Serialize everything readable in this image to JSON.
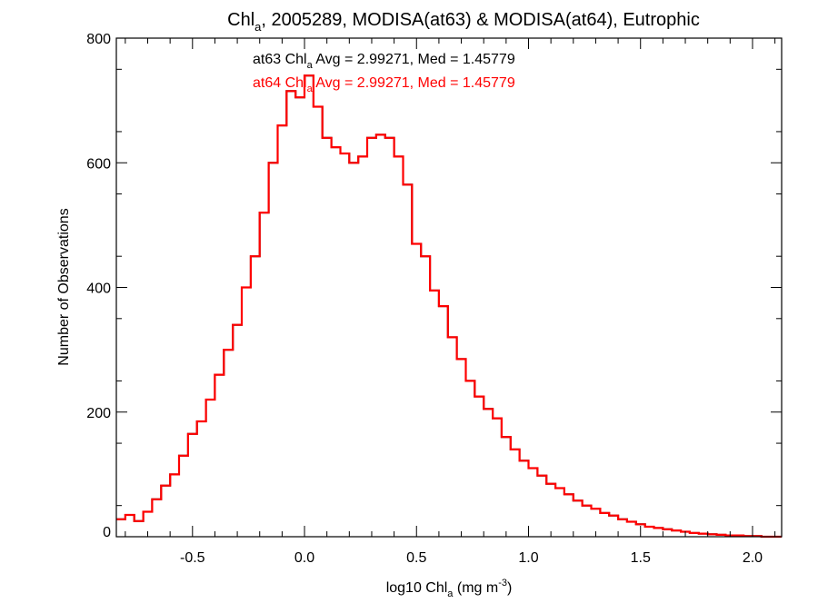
{
  "chart_data": {
    "type": "line",
    "title": {
      "prefix": "Chl",
      "sub": "a",
      "suffix": ", 2005289, MODISA(at63) & MODISA(at64), Eutrophic"
    },
    "xlabel": {
      "prefix": "log10 Chl",
      "sub": "a",
      "middle": " (mg m",
      "sup": "-3",
      "suffix": ")"
    },
    "ylabel": "Number of Observations",
    "xlim": [
      -0.84,
      2.13
    ],
    "ylim": [
      0,
      800
    ],
    "xticks": [
      -0.5,
      0.0,
      0.5,
      1.0,
      1.5,
      2.0
    ],
    "xtick_labels": [
      "-0.5",
      "0.0",
      "0.5",
      "1.0",
      "1.5",
      "2.0"
    ],
    "yticks": [
      0,
      200,
      400,
      600,
      800
    ],
    "ytick_labels": [
      "0",
      "200",
      "400",
      "600",
      "800"
    ],
    "grid": false,
    "legend": "none",
    "annotations": [
      {
        "series": "at63",
        "prefix": "at63 Chl",
        "sub": "a",
        "suffix": " Avg = 2.99271, Med = 1.45779",
        "color": "#000000"
      },
      {
        "series": "at64",
        "prefix": "at64 Chl",
        "sub": "a",
        "suffix": " Avg = 2.99271, Med = 1.45779",
        "color": "#ff0000"
      }
    ],
    "series": [
      {
        "color": "#000000",
        "x": [
          -0.84,
          -0.8,
          -0.76,
          -0.72,
          -0.68,
          -0.64,
          -0.6,
          -0.56,
          -0.52,
          -0.48,
          -0.44,
          -0.4,
          -0.36,
          -0.32,
          -0.28,
          -0.24,
          -0.2,
          -0.16,
          -0.12,
          -0.08,
          -0.04,
          0.0,
          0.04,
          0.08,
          0.12,
          0.16,
          0.2,
          0.24,
          0.28,
          0.32,
          0.36,
          0.4,
          0.44,
          0.48,
          0.52,
          0.56,
          0.6,
          0.64,
          0.68,
          0.72,
          0.76,
          0.8,
          0.84,
          0.88,
          0.92,
          0.96,
          1.0,
          1.04,
          1.08,
          1.12,
          1.16,
          1.2,
          1.24,
          1.28,
          1.32,
          1.36,
          1.4,
          1.44,
          1.48,
          1.52,
          1.56,
          1.6,
          1.64,
          1.68,
          1.72,
          1.76,
          1.8,
          1.84,
          1.88,
          1.92,
          1.96,
          2.0,
          2.04,
          2.08,
          2.12
        ],
        "y": [
          28,
          35,
          25,
          40,
          60,
          82,
          100,
          130,
          165,
          185,
          220,
          260,
          300,
          340,
          400,
          450,
          520,
          600,
          660,
          715,
          705,
          740,
          690,
          640,
          625,
          615,
          600,
          610,
          640,
          645,
          640,
          610,
          565,
          470,
          450,
          395,
          370,
          320,
          285,
          250,
          225,
          205,
          190,
          160,
          140,
          122,
          110,
          98,
          85,
          78,
          68,
          58,
          50,
          45,
          38,
          34,
          28,
          24,
          20,
          16,
          14,
          12,
          10,
          8,
          6,
          5,
          4,
          3,
          2,
          2,
          1,
          1,
          0,
          0,
          0
        ]
      },
      {
        "color": "#ff0000",
        "x": [
          -0.84,
          -0.8,
          -0.76,
          -0.72,
          -0.68,
          -0.64,
          -0.6,
          -0.56,
          -0.52,
          -0.48,
          -0.44,
          -0.4,
          -0.36,
          -0.32,
          -0.28,
          -0.24,
          -0.2,
          -0.16,
          -0.12,
          -0.08,
          -0.04,
          0.0,
          0.04,
          0.08,
          0.12,
          0.16,
          0.2,
          0.24,
          0.28,
          0.32,
          0.36,
          0.4,
          0.44,
          0.48,
          0.52,
          0.56,
          0.6,
          0.64,
          0.68,
          0.72,
          0.76,
          0.8,
          0.84,
          0.88,
          0.92,
          0.96,
          1.0,
          1.04,
          1.08,
          1.12,
          1.16,
          1.2,
          1.24,
          1.28,
          1.32,
          1.36,
          1.4,
          1.44,
          1.48,
          1.52,
          1.56,
          1.6,
          1.64,
          1.68,
          1.72,
          1.76,
          1.8,
          1.84,
          1.88,
          1.92,
          1.96,
          2.0,
          2.04,
          2.08,
          2.12
        ],
        "y": [
          28,
          35,
          25,
          40,
          60,
          82,
          100,
          130,
          165,
          185,
          220,
          260,
          300,
          340,
          400,
          450,
          520,
          600,
          660,
          715,
          705,
          740,
          690,
          640,
          625,
          615,
          600,
          610,
          640,
          645,
          640,
          610,
          565,
          470,
          450,
          395,
          370,
          320,
          285,
          250,
          225,
          205,
          190,
          160,
          140,
          122,
          110,
          98,
          85,
          78,
          68,
          58,
          50,
          45,
          38,
          34,
          28,
          24,
          20,
          16,
          14,
          12,
          10,
          8,
          6,
          5,
          4,
          3,
          2,
          2,
          1,
          1,
          0,
          0,
          0
        ]
      }
    ]
  }
}
